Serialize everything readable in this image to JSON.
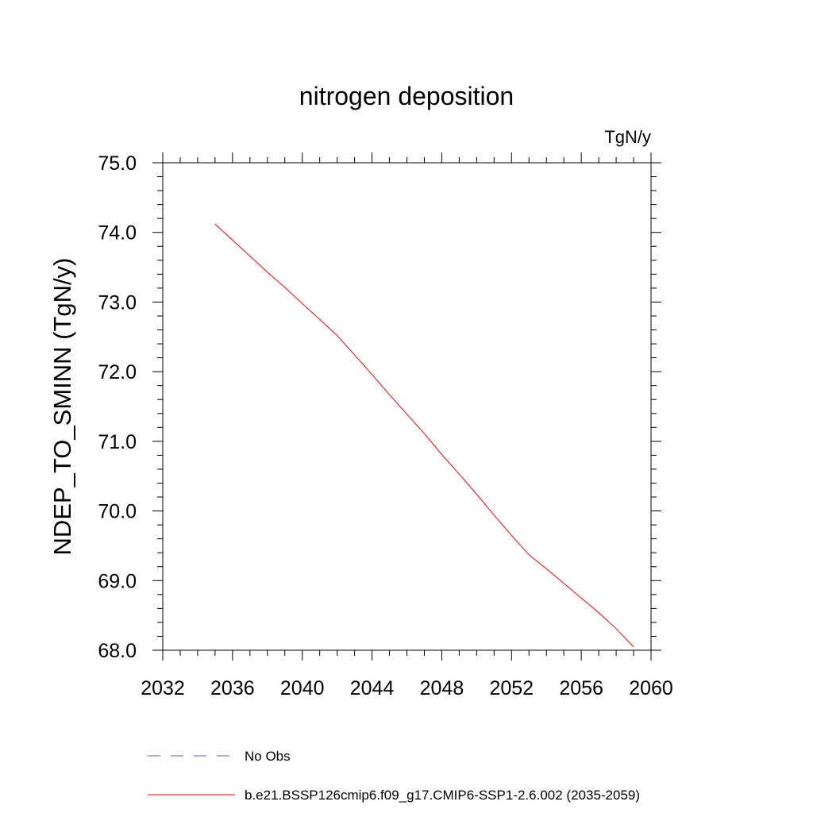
{
  "chart_data": {
    "type": "line",
    "title": "nitrogen deposition",
    "units_label": "TgN/y",
    "xlabel": "",
    "ylabel": "NDEP_TO_SMINN  (TgN/y)",
    "xlim": [
      2032,
      2060
    ],
    "ylim": [
      68.0,
      75.0
    ],
    "x_ticks": [
      "2032",
      "2036",
      "2040",
      "2044",
      "2048",
      "2052",
      "2056",
      "2060"
    ],
    "y_ticks": [
      "68.0",
      "69.0",
      "70.0",
      "71.0",
      "72.0",
      "73.0",
      "74.0",
      "75.0"
    ],
    "series": [
      {
        "name": "b.e21.BSSP126cmip6.f09_g17.CMIP6-SSP1-2.6.002 (2035-2059)",
        "color": "#ff0000",
        "style": "solid",
        "x": [
          2035,
          2036,
          2037,
          2038,
          2039,
          2040,
          2041,
          2042,
          2043,
          2044,
          2045,
          2046,
          2047,
          2048,
          2049,
          2050,
          2051,
          2052,
          2053,
          2054,
          2055,
          2056,
          2057,
          2058,
          2059
        ],
        "y": [
          74.12,
          73.89,
          73.66,
          73.43,
          73.21,
          72.98,
          72.75,
          72.52,
          72.24,
          71.96,
          71.67,
          71.39,
          71.11,
          70.81,
          70.53,
          70.24,
          69.94,
          69.65,
          69.37,
          69.17,
          68.96,
          68.75,
          68.54,
          68.31,
          68.05
        ]
      }
    ],
    "legend": {
      "position": "bottom",
      "entries": [
        {
          "label": "No Obs",
          "color": "#5b5bcc",
          "style": "dashed"
        },
        {
          "label": "b.e21.BSSP126cmip6.f09_g17.CMIP6-SSP1-2.6.002 (2035-2059)",
          "color": "#ff0000",
          "style": "solid"
        }
      ]
    },
    "grid": false
  }
}
